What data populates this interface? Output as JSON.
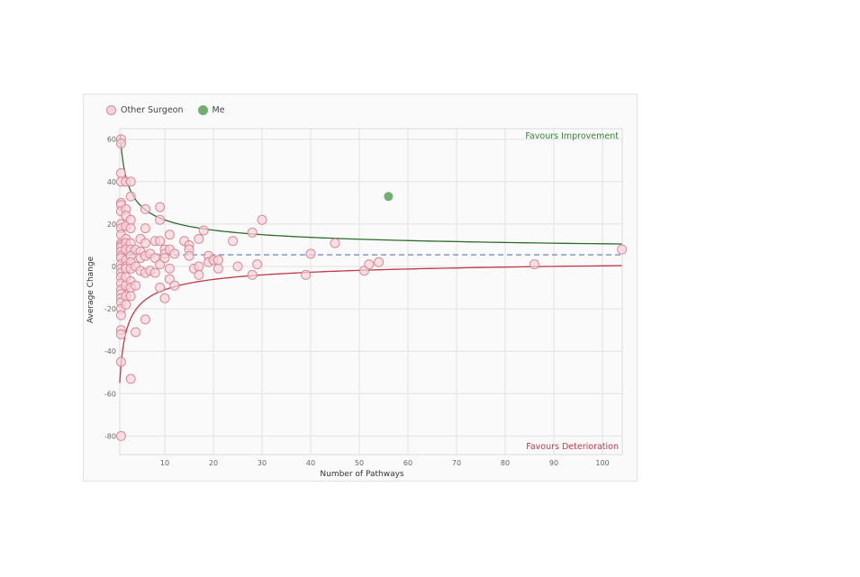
{
  "legend": {
    "items": [
      {
        "label": "Other Surgeon",
        "key": "other"
      },
      {
        "label": "Me",
        "key": "me"
      }
    ]
  },
  "annotations": {
    "top_right": "Favours Improvement",
    "bottom_right": "Favours Deterioration"
  },
  "colors": {
    "other_fill": "#f6d3da",
    "other_stroke": "#d98a98",
    "me_fill": "#72ad72",
    "upper_limit": "#2e6b2e",
    "lower_limit": "#c0394a",
    "mean_line": "#7b8fc4",
    "improvement_text": "#3a7d3a",
    "deterioration_text": "#c0394a",
    "grid": "#e2e2e2"
  },
  "chart_data": {
    "type": "scatter",
    "subtype": "funnel plot",
    "title": "",
    "xlabel": "Number of Pathways",
    "ylabel": "Average Change",
    "xlim": [
      0.7,
      104
    ],
    "ylim": [
      -88,
      66
    ],
    "xticks": [
      10,
      20,
      30,
      40,
      50,
      60,
      70,
      80,
      90,
      100
    ],
    "yticks": [
      60,
      40,
      20,
      0,
      -20,
      -40,
      -60,
      -80
    ],
    "grid": true,
    "legend_position": "top-left",
    "mean_line": {
      "y": 5.5,
      "style": "dashed",
      "color": "#7b8fc4"
    },
    "control_limits": {
      "upper": {
        "label": "upper limit",
        "formula": "5.5 + 52/sqrt(x)",
        "color": "#2e6b2e"
      },
      "lower": {
        "label": "lower limit",
        "formula": "5.5 - 52/sqrt(x)",
        "color": "#c0394a"
      }
    },
    "series": [
      {
        "name": "Other Surgeon",
        "points": [
          [
            1,
            60
          ],
          [
            1,
            58
          ],
          [
            1,
            44
          ],
          [
            1,
            40
          ],
          [
            1,
            30
          ],
          [
            1,
            29
          ],
          [
            1,
            26
          ],
          [
            1,
            20
          ],
          [
            1,
            18
          ],
          [
            1,
            15
          ],
          [
            1,
            11
          ],
          [
            1,
            10
          ],
          [
            1,
            9
          ],
          [
            1,
            7
          ],
          [
            1,
            5
          ],
          [
            1,
            4
          ],
          [
            1,
            1
          ],
          [
            1,
            -1
          ],
          [
            1,
            -3
          ],
          [
            1,
            -5
          ],
          [
            1,
            -8
          ],
          [
            1,
            -11
          ],
          [
            1,
            -13
          ],
          [
            1,
            -15
          ],
          [
            1,
            -17
          ],
          [
            1,
            -20
          ],
          [
            1,
            -23
          ],
          [
            1,
            -30
          ],
          [
            1,
            -32
          ],
          [
            1,
            -45
          ],
          [
            1,
            -80
          ],
          [
            2,
            40
          ],
          [
            2,
            27
          ],
          [
            2,
            24
          ],
          [
            2,
            19
          ],
          [
            2,
            13
          ],
          [
            2,
            11
          ],
          [
            2,
            8
          ],
          [
            2,
            3
          ],
          [
            2,
            0
          ],
          [
            2,
            -1
          ],
          [
            2,
            -5
          ],
          [
            2,
            -9
          ],
          [
            2,
            -14
          ],
          [
            2,
            -18
          ],
          [
            3,
            40
          ],
          [
            3,
            33
          ],
          [
            3,
            22
          ],
          [
            3,
            18
          ],
          [
            3,
            11
          ],
          [
            3,
            8
          ],
          [
            3,
            5
          ],
          [
            3,
            2
          ],
          [
            3,
            -1
          ],
          [
            3,
            -7
          ],
          [
            3,
            -10
          ],
          [
            3,
            -14
          ],
          [
            3,
            -53
          ],
          [
            4,
            8
          ],
          [
            4,
            0
          ],
          [
            4,
            -9
          ],
          [
            4,
            -31
          ],
          [
            5,
            13
          ],
          [
            5,
            7
          ],
          [
            5,
            4
          ],
          [
            5,
            -2
          ],
          [
            6,
            27
          ],
          [
            6,
            18
          ],
          [
            6,
            11
          ],
          [
            6,
            5
          ],
          [
            6,
            -3
          ],
          [
            6,
            -25
          ],
          [
            7,
            6
          ],
          [
            7,
            -2
          ],
          [
            8,
            12
          ],
          [
            8,
            4
          ],
          [
            8,
            -3
          ],
          [
            9,
            28
          ],
          [
            9,
            22
          ],
          [
            9,
            12
          ],
          [
            9,
            1
          ],
          [
            9,
            -10
          ],
          [
            10,
            8
          ],
          [
            10,
            6
          ],
          [
            10,
            4
          ],
          [
            10,
            -15
          ],
          [
            11,
            15
          ],
          [
            11,
            8
          ],
          [
            11,
            -1
          ],
          [
            11,
            -6
          ],
          [
            12,
            6
          ],
          [
            12,
            -9
          ],
          [
            14,
            12
          ],
          [
            15,
            10
          ],
          [
            15,
            8
          ],
          [
            15,
            5
          ],
          [
            16,
            -1
          ],
          [
            17,
            13
          ],
          [
            17,
            0
          ],
          [
            17,
            -4
          ],
          [
            18,
            17
          ],
          [
            19,
            5
          ],
          [
            19,
            2
          ],
          [
            20,
            3
          ],
          [
            21,
            3
          ],
          [
            21,
            -1
          ],
          [
            24,
            12
          ],
          [
            25,
            0
          ],
          [
            28,
            16
          ],
          [
            28,
            -4
          ],
          [
            29,
            1
          ],
          [
            30,
            22
          ],
          [
            39,
            -4
          ],
          [
            40,
            6
          ],
          [
            45,
            11
          ],
          [
            51,
            -2
          ],
          [
            52,
            1
          ],
          [
            54,
            2
          ],
          [
            86,
            1
          ],
          [
            104,
            8
          ]
        ]
      },
      {
        "name": "Me",
        "points": [
          [
            56,
            33
          ]
        ]
      }
    ]
  },
  "axes": {
    "x_ticks": [
      "10",
      "20",
      "30",
      "40",
      "50",
      "60",
      "70",
      "80",
      "90",
      "100"
    ],
    "y_ticks": [
      "60",
      "40",
      "20",
      "0",
      "-20",
      "-40",
      "-60",
      "-80"
    ],
    "xlabel": "Number of Pathways",
    "ylabel": "Average Change"
  }
}
